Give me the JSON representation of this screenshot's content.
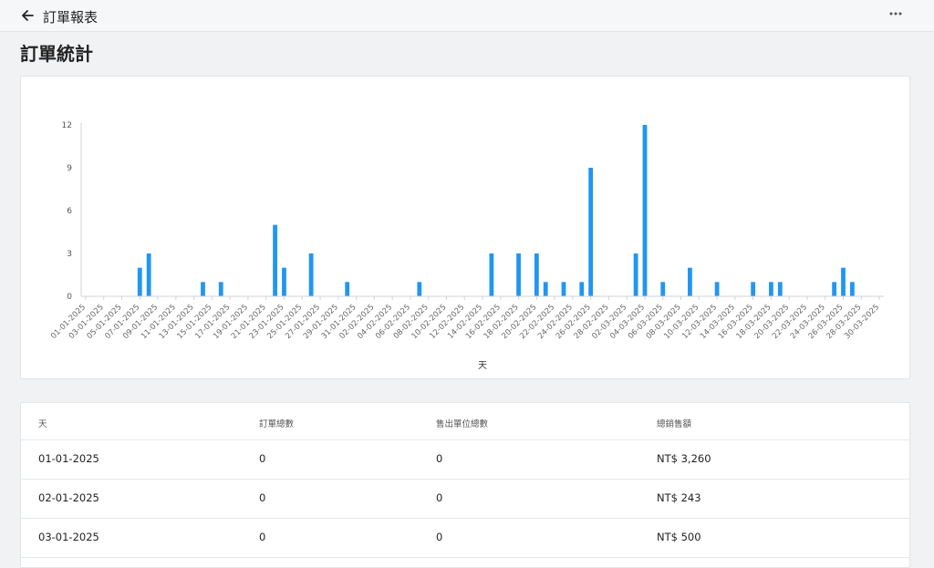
{
  "header": {
    "title": "訂單報表"
  },
  "page": {
    "title": "訂單統計"
  },
  "chart_data": {
    "type": "bar",
    "xlabel": "天",
    "ylim": [
      0,
      12
    ],
    "yticks": [
      0,
      3,
      6,
      9,
      12
    ],
    "bar_color": "#2196f3",
    "x_tick_labels": [
      "01-01-2025",
      "03-01-2025",
      "05-01-2025",
      "07-01-2025",
      "09-01-2025",
      "11-01-2025",
      "13-01-2025",
      "15-01-2025",
      "17-01-2025",
      "19-01-2025",
      "21-01-2025",
      "23-01-2025",
      "25-01-2025",
      "27-01-2025",
      "29-01-2025",
      "31-01-2025",
      "02-02-2025",
      "04-02-2025",
      "06-02-2025",
      "08-02-2025",
      "10-02-2025",
      "12-02-2025",
      "14-02-2025",
      "16-02-2025",
      "18-02-2025",
      "20-02-2025",
      "22-02-2025",
      "24-02-2025",
      "26-02-2025",
      "28-02-2025",
      "02-03-2025",
      "04-03-2025",
      "06-03-2025",
      "08-03-2025",
      "10-03-2025",
      "12-03-2025",
      "14-03-2025",
      "16-03-2025",
      "18-03-2025",
      "20-03-2025",
      "22-03-2025",
      "24-03-2025",
      "26-03-2025",
      "28-03-2025",
      "30-03-2025"
    ],
    "values": [
      0,
      0,
      0,
      0,
      0,
      0,
      2,
      3,
      0,
      0,
      0,
      0,
      0,
      1,
      0,
      1,
      0,
      0,
      0,
      0,
      0,
      5,
      2,
      0,
      0,
      3,
      0,
      0,
      0,
      1,
      0,
      0,
      0,
      0,
      0,
      0,
      0,
      1,
      0,
      0,
      0,
      0,
      0,
      0,
      0,
      3,
      0,
      0,
      3,
      0,
      3,
      1,
      0,
      1,
      0,
      1,
      9,
      0,
      0,
      0,
      0,
      3,
      12,
      0,
      1,
      0,
      0,
      2,
      0,
      0,
      1,
      0,
      0,
      0,
      1,
      0,
      1,
      1,
      0,
      0,
      0,
      0,
      0,
      1,
      2,
      1,
      0,
      0,
      0
    ]
  },
  "table": {
    "columns": [
      "天",
      "訂單總數",
      "售出單位總數",
      "總銷售額"
    ],
    "rows": [
      [
        "01-01-2025",
        "0",
        "0",
        "NT$ 3,260"
      ],
      [
        "02-01-2025",
        "0",
        "0",
        "NT$ 243"
      ],
      [
        "03-01-2025",
        "0",
        "0",
        "NT$ 500"
      ]
    ]
  }
}
